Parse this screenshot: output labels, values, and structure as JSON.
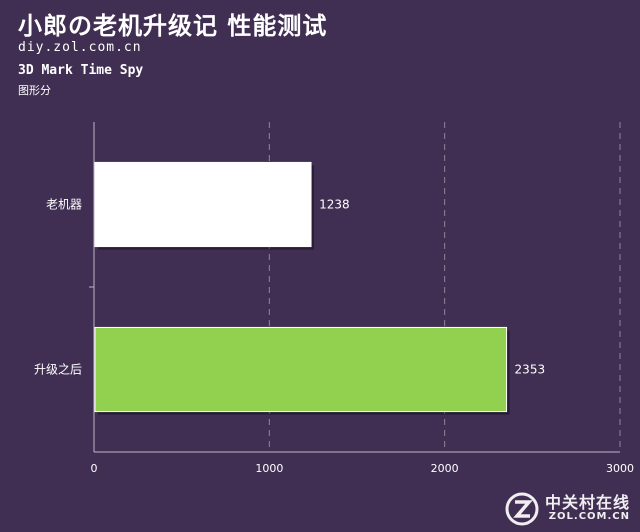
{
  "header": {
    "title": "小郎の老机升级记 性能测试",
    "site": "diy.zol.com.cn",
    "subtitle": "3D Mark Time Spy",
    "unit": "图形分"
  },
  "watermark": {
    "cn": "中关村在线",
    "en": "ZOL.COM.CN"
  },
  "colors": {
    "background": "#402f52",
    "series": [
      "#ffffff",
      "#92d050"
    ]
  },
  "chart_data": {
    "type": "bar",
    "orientation": "horizontal",
    "title": "3D Mark Time Spy",
    "xlabel": "",
    "ylabel": "",
    "categories": [
      "老机器",
      "升级之后"
    ],
    "values": [
      1238,
      2353
    ],
    "data_labels": [
      "1238",
      "2353"
    ],
    "xlim": [
      0,
      3000
    ],
    "xticks": [
      0,
      1000,
      2000,
      3000
    ],
    "grid": true,
    "legend": "none"
  }
}
